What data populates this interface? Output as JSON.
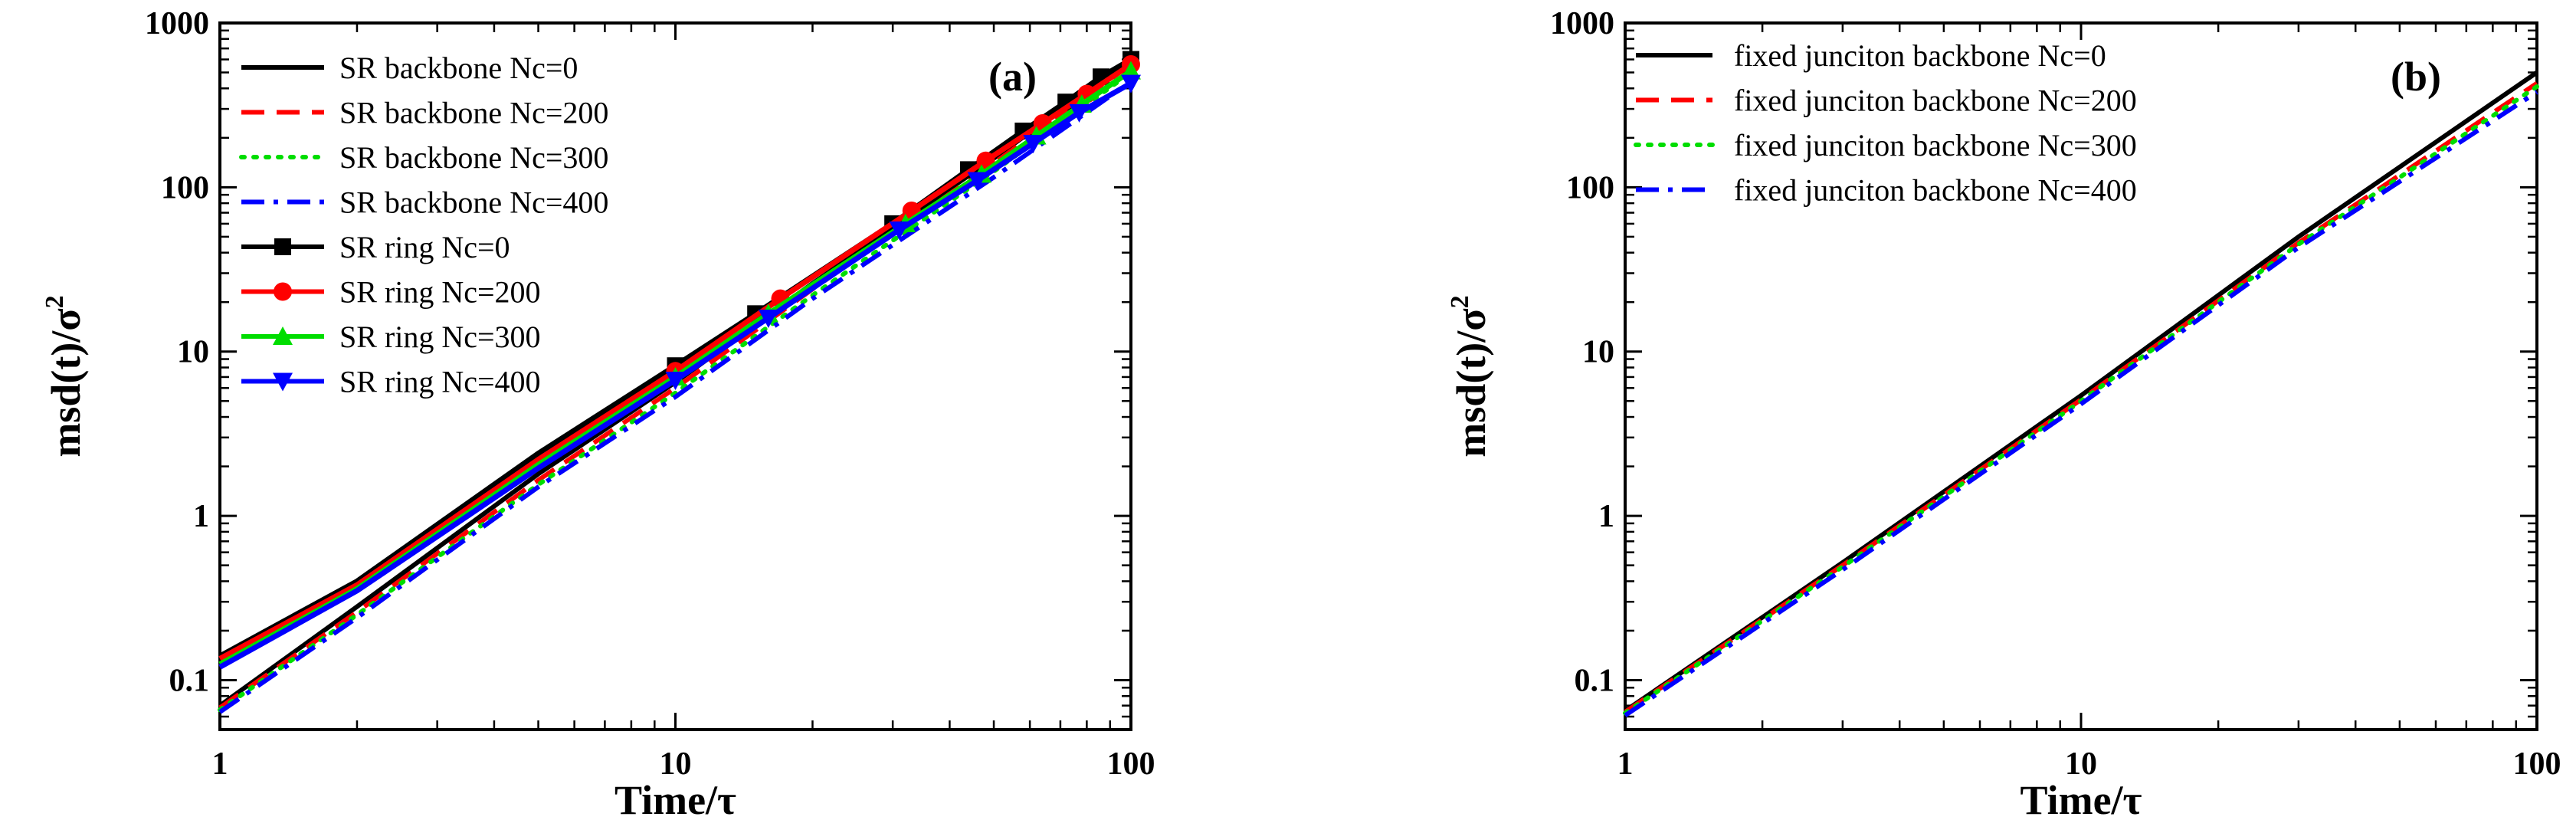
{
  "chart_data": [
    {
      "type": "line",
      "panel_label": "(a)",
      "xlabel": "Time/τ",
      "ylabel_main": "msd(t)/σ",
      "ylabel_sup": "2",
      "xscale": "log",
      "yscale": "log",
      "xlim": [
        1,
        100
      ],
      "ylim": [
        0.05,
        1000
      ],
      "x_ticks": [
        "1",
        "10",
        "100"
      ],
      "y_ticks": [
        "0.1",
        "1",
        "10",
        "100",
        "1000"
      ],
      "legend_position": "top-left",
      "series": [
        {
          "name": "SR backbone Nc=0",
          "color": "#000000",
          "dash": "solid",
          "marker": "none",
          "points": [
            [
              1,
              0.07
            ],
            [
              2,
              0.28
            ],
            [
              5,
              1.8
            ],
            [
              10,
              6.5
            ],
            [
              20,
              26
            ],
            [
              50,
              150
            ],
            [
              100,
              600
            ]
          ]
        },
        {
          "name": "SR backbone Nc=200",
          "color": "#ff0000",
          "dash": "dash",
          "marker": "none",
          "points": [
            [
              1,
              0.068
            ],
            [
              2,
              0.26
            ],
            [
              5,
              1.65
            ],
            [
              10,
              6.0
            ],
            [
              20,
              24
            ],
            [
              50,
              140
            ],
            [
              100,
              560
            ]
          ]
        },
        {
          "name": "SR backbone Nc=300",
          "color": "#00dd00",
          "dash": "dot",
          "marker": "none",
          "points": [
            [
              1,
              0.066
            ],
            [
              2,
              0.25
            ],
            [
              5,
              1.55
            ],
            [
              10,
              5.6
            ],
            [
              20,
              22
            ],
            [
              50,
              125
            ],
            [
              100,
              500
            ]
          ]
        },
        {
          "name": "SR backbone Nc=400",
          "color": "#0000ff",
          "dash": "dashdot",
          "marker": "none",
          "points": [
            [
              1,
              0.064
            ],
            [
              2,
              0.24
            ],
            [
              5,
              1.5
            ],
            [
              10,
              5.3
            ],
            [
              20,
              21
            ],
            [
              50,
              115
            ],
            [
              100,
              440
            ]
          ]
        },
        {
          "name": "SR ring Nc=0",
          "color": "#000000",
          "dash": "solid",
          "marker": "square",
          "points": [
            [
              1,
              0.14
            ],
            [
              2,
              0.4
            ],
            [
              5,
              2.4
            ],
            [
              10,
              8.2
            ],
            [
              15,
              17
            ],
            [
              30,
              60
            ],
            [
              44,
              128
            ],
            [
              58,
              220
            ],
            [
              72,
              330
            ],
            [
              86,
              470
            ],
            [
              100,
              600
            ]
          ]
        },
        {
          "name": "SR ring Nc=200",
          "color": "#ff0000",
          "dash": "solid",
          "marker": "circle",
          "points": [
            [
              1,
              0.135
            ],
            [
              2,
              0.38
            ],
            [
              5,
              2.2
            ],
            [
              10,
              7.6
            ],
            [
              17,
              21
            ],
            [
              33,
              72
            ],
            [
              48,
              145
            ],
            [
              64,
              245
            ],
            [
              80,
              370
            ],
            [
              100,
              560
            ]
          ]
        },
        {
          "name": "SR ring Nc=300",
          "color": "#00dd00",
          "dash": "solid",
          "marker": "triangle-up",
          "points": [
            [
              1,
              0.125
            ],
            [
              2,
              0.36
            ],
            [
              5,
              2.05
            ],
            [
              10,
              7.0
            ],
            [
              16,
              17
            ],
            [
              32,
              60
            ],
            [
              47,
              120
            ],
            [
              62,
              205
            ],
            [
              78,
              320
            ],
            [
              100,
              510
            ]
          ]
        },
        {
          "name": "SR ring Nc=400",
          "color": "#0000ff",
          "dash": "solid",
          "marker": "triangle-down",
          "points": [
            [
              1,
              0.12
            ],
            [
              2,
              0.35
            ],
            [
              5,
              1.95
            ],
            [
              10,
              6.7
            ],
            [
              16,
              16
            ],
            [
              31,
              55
            ],
            [
              46,
              110
            ],
            [
              61,
              185
            ],
            [
              77,
              285
            ],
            [
              100,
              430
            ]
          ]
        }
      ]
    },
    {
      "type": "line",
      "panel_label": "(b)",
      "xlabel": "Time/τ",
      "ylabel_main": "msd(t)/σ",
      "ylabel_sup": "2",
      "xscale": "log",
      "yscale": "log",
      "xlim": [
        1,
        100
      ],
      "ylim": [
        0.05,
        1000
      ],
      "x_ticks": [
        "1",
        "10",
        "100"
      ],
      "y_ticks": [
        "0.1",
        "1",
        "10",
        "100",
        "1000"
      ],
      "legend_position": "top-left",
      "series": [
        {
          "name": "fixed junciton backbone Nc=0",
          "color": "#000000",
          "dash": "solid",
          "marker": "none",
          "points": [
            [
              1,
              0.065
            ],
            [
              3,
              0.52
            ],
            [
              10,
              5.4
            ],
            [
              30,
              50
            ],
            [
              100,
              500
            ]
          ]
        },
        {
          "name": "fixed junciton backbone Nc=200",
          "color": "#ff0000",
          "dash": "dash",
          "marker": "none",
          "points": [
            [
              1,
              0.064
            ],
            [
              3,
              0.5
            ],
            [
              10,
              5.1
            ],
            [
              30,
              46
            ],
            [
              100,
              430
            ]
          ]
        },
        {
          "name": "fixed junciton backbone Nc=300",
          "color": "#00dd00",
          "dash": "dot",
          "marker": "none",
          "points": [
            [
              1,
              0.063
            ],
            [
              3,
              0.49
            ],
            [
              10,
              5.0
            ],
            [
              30,
              45
            ],
            [
              100,
              410
            ]
          ]
        },
        {
          "name": "fixed junciton backbone Nc=400",
          "color": "#0000ff",
          "dash": "dashdot",
          "marker": "none",
          "points": [
            [
              1,
              0.061
            ],
            [
              3,
              0.47
            ],
            [
              10,
              4.8
            ],
            [
              30,
              43
            ],
            [
              100,
              380
            ]
          ]
        }
      ]
    }
  ]
}
